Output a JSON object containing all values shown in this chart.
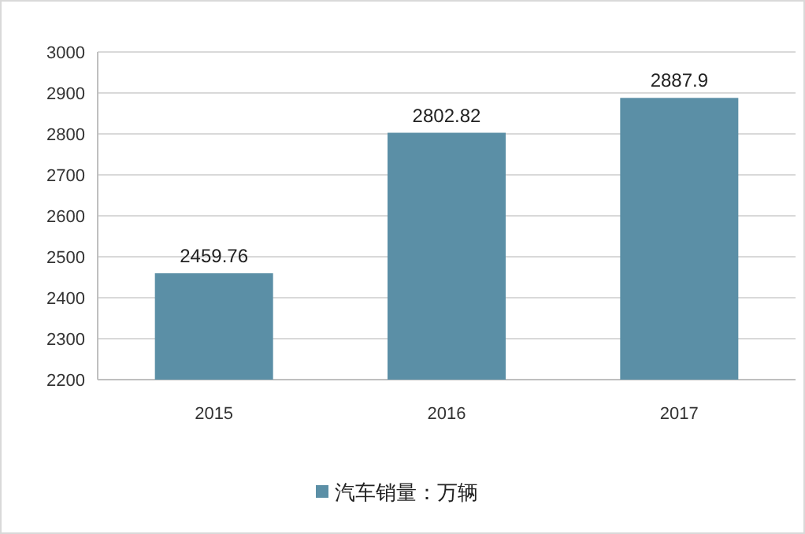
{
  "chart_data": {
    "type": "bar",
    "categories": [
      "2015",
      "2016",
      "2017"
    ],
    "series": [
      {
        "name": "汽车销量：万辆",
        "color": "#5b8fa6",
        "values": [
          2459.76,
          2802.82,
          2887.9
        ]
      }
    ],
    "ylim": [
      2200,
      3000
    ],
    "yticks": [
      2200,
      2300,
      2400,
      2500,
      2600,
      2700,
      2800,
      2900,
      3000
    ],
    "grid": "y",
    "legend": "bottom",
    "data_labels": true
  }
}
